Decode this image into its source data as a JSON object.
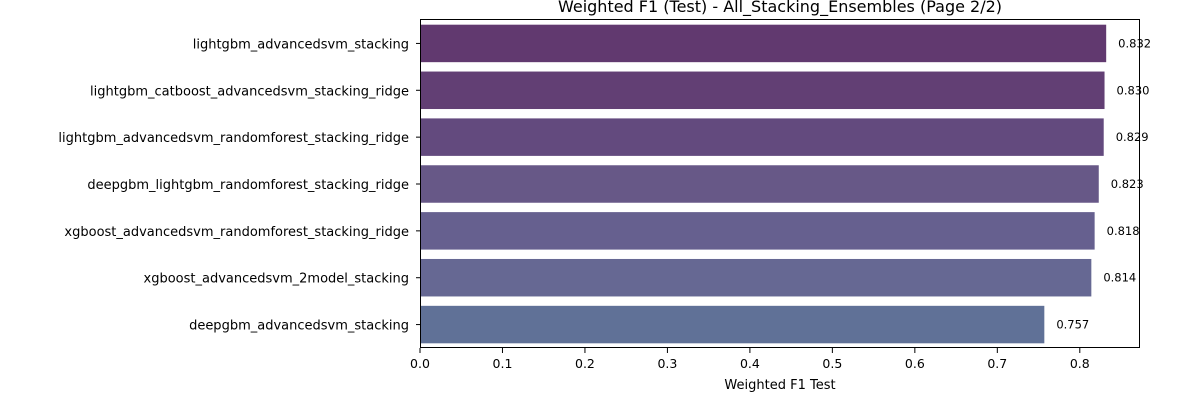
{
  "chart_data": {
    "type": "bar",
    "orientation": "horizontal",
    "title": "Weighted F1 (Test) - All_Stacking_Ensembles (Page 2/2)",
    "xlabel": "Weighted F1 Test",
    "ylabel": "",
    "xlim": [
      0,
      0.873
    ],
    "xticks": [
      "0.0",
      "0.1",
      "0.2",
      "0.3",
      "0.4",
      "0.5",
      "0.6",
      "0.7",
      "0.8"
    ],
    "categories": [
      "lightgbm_advancedsvm_stacking",
      "lightgbm_catboost_advancedsvm_stacking_ridge",
      "lightgbm_advancedsvm_randomforest_stacking_ridge",
      "deepgbm_lightgbm_randomforest_stacking_ridge",
      "xgboost_advancedsvm_randomforest_stacking_ridge",
      "xgboost_advancedsvm_2model_stacking",
      "deepgbm_advancedsvm_stacking"
    ],
    "values": [
      0.832,
      0.83,
      0.829,
      0.823,
      0.818,
      0.814,
      0.757
    ],
    "value_labels": [
      "0.832",
      "0.830",
      "0.829",
      "0.823",
      "0.818",
      "0.814",
      "0.757"
    ],
    "colors": [
      "#61396f",
      "#623f74",
      "#634a7e",
      "#675887",
      "#66608f",
      "#666893",
      "#607197"
    ],
    "grid": false,
    "legend": "none"
  }
}
